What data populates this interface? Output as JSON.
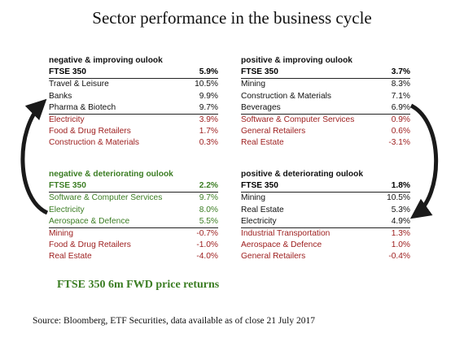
{
  "title": "Sector performance in the business cycle",
  "panels": {
    "neg_improving": {
      "heading": "negative & improving oulook",
      "total_label": "FTSE 350",
      "total_value": "5.9%",
      "rows": [
        {
          "label": "Travel & Leisure",
          "value": "10.5%"
        },
        {
          "label": "Banks",
          "value": "9.9%"
        },
        {
          "label": "Pharma & Biotech",
          "value": "9.7%"
        },
        {
          "label": "Electricity",
          "value": "3.9%"
        },
        {
          "label": "Food & Drug Retailers",
          "value": "1.7%"
        },
        {
          "label": "Construction & Materials",
          "value": "0.3%"
        }
      ]
    },
    "pos_improving": {
      "heading": "positive & improving oulook",
      "total_label": "FTSE 350",
      "total_value": "3.7%",
      "rows": [
        {
          "label": "Mining",
          "value": "8.3%"
        },
        {
          "label": "Construction & Materials",
          "value": "7.1%"
        },
        {
          "label": "Beverages",
          "value": "6.9%"
        },
        {
          "label": "Software & Computer Services",
          "value": "0.9%"
        },
        {
          "label": "General Retailers",
          "value": "0.6%"
        },
        {
          "label": "Real Estate",
          "value": "-3.1%"
        }
      ]
    },
    "neg_deteriorating": {
      "heading": "negative & deteriorating oulook",
      "total_label": "FTSE 350",
      "total_value": "2.2%",
      "rows": [
        {
          "label": "Software & Computer Services",
          "value": "9.7%"
        },
        {
          "label": "Electricity",
          "value": "8.0%"
        },
        {
          "label": "Aerospace & Defence",
          "value": "5.5%"
        },
        {
          "label": "Mining",
          "value": "-0.7%"
        },
        {
          "label": "Food & Drug Retailers",
          "value": "-1.0%"
        },
        {
          "label": "Real Estate",
          "value": "-4.0%"
        }
      ]
    },
    "pos_deteriorating": {
      "heading": "positive & deteriorating oulook",
      "total_label": "FTSE 350",
      "total_value": "1.8%",
      "rows": [
        {
          "label": "Mining",
          "value": "10.5%"
        },
        {
          "label": "Real Estate",
          "value": "5.3%"
        },
        {
          "label": "Electricity",
          "value": "4.9%"
        },
        {
          "label": "Industrial Transportation",
          "value": "1.3%"
        },
        {
          "label": "Aerospace & Defence",
          "value": "1.0%"
        },
        {
          "label": "General Retailers",
          "value": "-0.4%"
        }
      ]
    }
  },
  "subtitle": "FTSE 350 6m FWD price returns",
  "source": "Source: Bloomberg, ETF Securities, data available as of close 21 July 2017",
  "colors": {
    "green": "#3b7d23",
    "red": "#9c1c1c",
    "text": "#111111"
  }
}
